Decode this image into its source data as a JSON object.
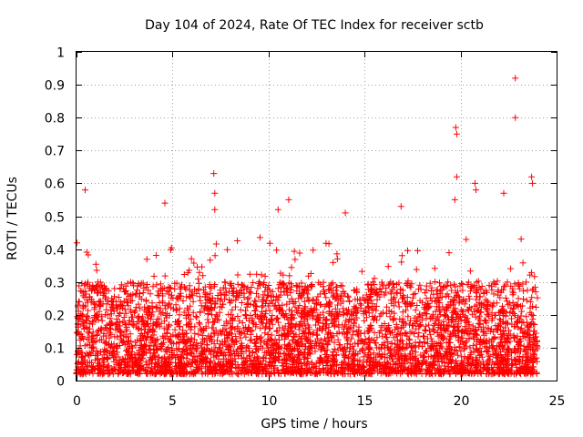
{
  "chart_data": {
    "type": "scatter",
    "title": "Day 104 of 2024, Rate Of TEC Index for receiver sctb",
    "xlabel": "GPS time / hours",
    "ylabel": "ROTI / TECUs",
    "xlim": [
      0,
      25
    ],
    "ylim": [
      0,
      1
    ],
    "x_ticks": [
      "0",
      "5",
      "10",
      "15",
      "20",
      "25"
    ],
    "y_ticks": [
      "0",
      "0.1",
      "0.2",
      "0.3",
      "0.4",
      "0.5",
      "0.6",
      "0.7",
      "0.8",
      "0.9",
      "1"
    ],
    "grid": true,
    "marker": "plus",
    "color": "#ff0000",
    "data_x_extent": [
      0,
      24
    ],
    "typical_y_band": [
      0.02,
      0.3
    ],
    "outliers": [
      {
        "x": 0.45,
        "y": 0.58
      },
      {
        "x": 4.6,
        "y": 0.54
      },
      {
        "x": 7.15,
        "y": 0.63
      },
      {
        "x": 7.2,
        "y": 0.57
      },
      {
        "x": 7.2,
        "y": 0.52
      },
      {
        "x": 11.05,
        "y": 0.55
      },
      {
        "x": 19.75,
        "y": 0.77
      },
      {
        "x": 19.8,
        "y": 0.75
      },
      {
        "x": 19.8,
        "y": 0.62
      },
      {
        "x": 19.7,
        "y": 0.55
      },
      {
        "x": 20.75,
        "y": 0.6
      },
      {
        "x": 20.8,
        "y": 0.58
      },
      {
        "x": 22.85,
        "y": 0.92
      },
      {
        "x": 22.85,
        "y": 0.8
      },
      {
        "x": 23.7,
        "y": 0.62
      },
      {
        "x": 23.75,
        "y": 0.6
      },
      {
        "x": 22.25,
        "y": 0.57
      },
      {
        "x": 14.0,
        "y": 0.51
      },
      {
        "x": 10.5,
        "y": 0.52
      },
      {
        "x": 16.9,
        "y": 0.53
      }
    ]
  }
}
